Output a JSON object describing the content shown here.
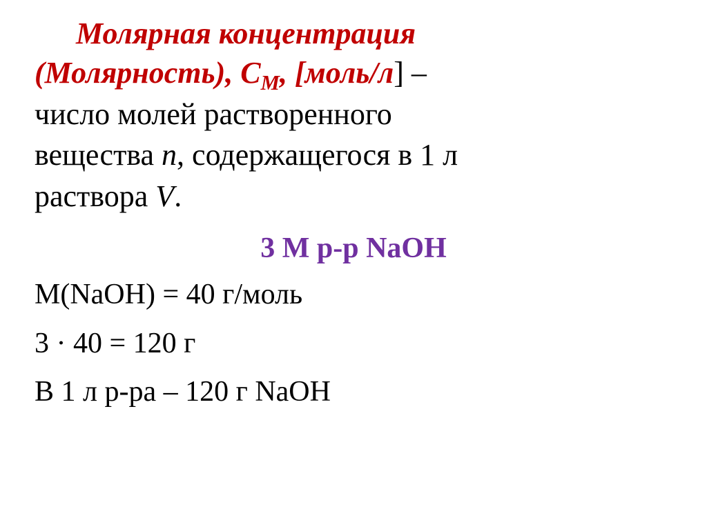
{
  "title": {
    "part1": "Молярная концентрация",
    "part2": "(Молярность), С",
    "subscript_m": "М",
    "comma_bracket": ", [",
    "unit": "моль/л",
    "bracket_close_dash": "] –"
  },
  "definition": {
    "line1_part1": "число молей растворенного",
    "line2_part1": "вещества ",
    "var_n": "n",
    "line2_part2": ", содержащегося в 1 л",
    "line3_part1": "раствора ",
    "var_v": "V",
    "period": "."
  },
  "example": {
    "header": "3 М  р-р  NaOH"
  },
  "calculations": {
    "line1": "M(NaOH) = 40 г/моль",
    "line2": "3 · 40 = 120 г",
    "line3": "В 1 л  р-ра  –  120 г  NaOH"
  },
  "colors": {
    "red": "#c00000",
    "black": "#000000",
    "purple": "#7030a0",
    "background": "#ffffff"
  },
  "fonts": {
    "family": "Times New Roman",
    "title_size": 44,
    "body_size": 44,
    "calc_size": 42
  }
}
